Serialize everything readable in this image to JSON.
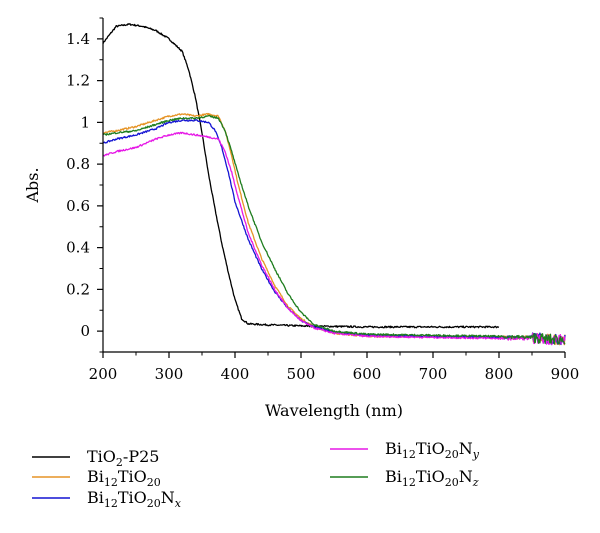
{
  "chart_data": {
    "type": "line",
    "title": "",
    "xlabel": "Wavelength (nm)",
    "ylabel": "Abs.",
    "xlim": [
      200,
      900
    ],
    "ylim": [
      -0.1,
      1.5
    ],
    "xticks": [
      "200",
      "300",
      "400",
      "500",
      "600",
      "700",
      "800",
      "900"
    ],
    "yticks": [
      "0",
      "0.2",
      "0.4",
      "0.6",
      "0.8",
      "1",
      "1.2",
      "1.4"
    ],
    "grid": false,
    "legend_position": "bottom",
    "series": [
      {
        "name": "TiO2-P25",
        "label_parts": [
          [
            "TiO",
            ""
          ],
          [
            "2",
            "sub"
          ],
          [
            "-P25",
            ""
          ]
        ],
        "color": "#000000",
        "x": [
          200,
          220,
          240,
          260,
          280,
          300,
          320,
          330,
          340,
          350,
          360,
          370,
          380,
          390,
          400,
          410,
          420,
          450,
          500,
          600,
          700,
          800
        ],
        "y": [
          1.38,
          1.46,
          1.47,
          1.46,
          1.44,
          1.4,
          1.34,
          1.25,
          1.12,
          0.95,
          0.75,
          0.58,
          0.42,
          0.28,
          0.15,
          0.06,
          0.035,
          0.03,
          0.025,
          0.02,
          0.02,
          0.02
        ]
      },
      {
        "name": "Bi12TiO20",
        "label_parts": [
          [
            "Bi",
            ""
          ],
          [
            "12",
            "sub"
          ],
          [
            "TiO",
            ""
          ],
          [
            "20",
            "sub"
          ]
        ],
        "color": "#e69426",
        "x": [
          200,
          220,
          250,
          280,
          300,
          320,
          340,
          360,
          375,
          385,
          395,
          405,
          420,
          440,
          460,
          480,
          500,
          520,
          550,
          600,
          700,
          800,
          850,
          880,
          900
        ],
        "y": [
          0.95,
          0.96,
          0.98,
          1.01,
          1.03,
          1.04,
          1.03,
          1.04,
          1.03,
          0.96,
          0.84,
          0.7,
          0.52,
          0.35,
          0.22,
          0.12,
          0.06,
          0.02,
          -0.01,
          -0.025,
          -0.025,
          -0.03,
          -0.03,
          -0.04,
          -0.04
        ]
      },
      {
        "name": "Bi12TiO20Nx",
        "label_parts": [
          [
            "Bi",
            ""
          ],
          [
            "12",
            "sub"
          ],
          [
            "TiO",
            ""
          ],
          [
            "20",
            "sub"
          ],
          [
            "N",
            ""
          ],
          [
            "x",
            "sub-italic"
          ]
        ],
        "color": "#1414d2",
        "x": [
          200,
          220,
          250,
          280,
          300,
          320,
          340,
          360,
          370,
          380,
          390,
          400,
          420,
          440,
          460,
          480,
          500,
          520,
          550,
          600,
          700,
          800,
          850,
          880,
          900
        ],
        "y": [
          0.9,
          0.92,
          0.94,
          0.97,
          1.0,
          1.01,
          1.01,
          1.0,
          0.96,
          0.88,
          0.76,
          0.62,
          0.44,
          0.3,
          0.19,
          0.11,
          0.05,
          0.02,
          -0.005,
          -0.02,
          -0.025,
          -0.03,
          -0.03,
          -0.04,
          -0.04
        ]
      },
      {
        "name": "Bi12TiO20Ny",
        "label_parts": [
          [
            "Bi",
            ""
          ],
          [
            "12",
            "sub"
          ],
          [
            "TiO",
            ""
          ],
          [
            "20",
            "sub"
          ],
          [
            "N",
            ""
          ],
          [
            "y",
            "sub-italic"
          ]
        ],
        "color": "#e619e6",
        "x": [
          200,
          220,
          250,
          280,
          300,
          320,
          340,
          360,
          375,
          385,
          395,
          405,
          420,
          440,
          460,
          480,
          500,
          520,
          550,
          600,
          700,
          800,
          850,
          880,
          900
        ],
        "y": [
          0.84,
          0.86,
          0.88,
          0.92,
          0.94,
          0.95,
          0.94,
          0.93,
          0.92,
          0.86,
          0.76,
          0.64,
          0.47,
          0.32,
          0.2,
          0.11,
          0.05,
          0.015,
          -0.01,
          -0.025,
          -0.03,
          -0.035,
          -0.035,
          -0.04,
          -0.04
        ]
      },
      {
        "name": "Bi12TiO20Nz",
        "label_parts": [
          [
            "Bi",
            ""
          ],
          [
            "12",
            "sub"
          ],
          [
            "TiO",
            ""
          ],
          [
            "20",
            "sub"
          ],
          [
            "N",
            ""
          ],
          [
            "z",
            "sub-italic"
          ]
        ],
        "color": "#1e7d1e",
        "x": [
          200,
          220,
          250,
          280,
          300,
          320,
          340,
          360,
          375,
          385,
          395,
          405,
          420,
          440,
          460,
          480,
          500,
          520,
          550,
          600,
          700,
          800,
          850,
          880,
          900
        ],
        "y": [
          0.94,
          0.95,
          0.96,
          0.99,
          1.01,
          1.02,
          1.02,
          1.03,
          1.02,
          0.96,
          0.86,
          0.75,
          0.6,
          0.43,
          0.3,
          0.18,
          0.09,
          0.03,
          0.0,
          -0.015,
          -0.02,
          -0.025,
          -0.03,
          -0.04,
          -0.04
        ]
      }
    ]
  }
}
